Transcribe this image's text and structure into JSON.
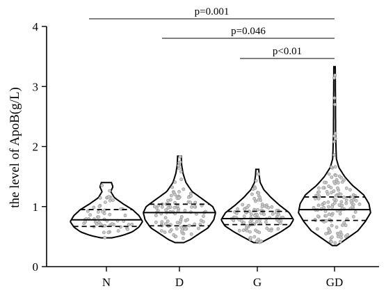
{
  "chart_data": {
    "type": "violin",
    "title": "",
    "xlabel": "",
    "ylabel": "the level of ApoB(g/L)",
    "ylim": [
      0,
      4
    ],
    "yticks": [
      0,
      1,
      2,
      3,
      4
    ],
    "categories": [
      "N",
      "D",
      "G",
      "GD"
    ],
    "groups": [
      {
        "name": "N",
        "min": 0.48,
        "q1": 0.67,
        "median": 0.78,
        "q3": 0.95,
        "max": 1.4,
        "profile": [
          [
            0.48,
            0.15
          ],
          [
            0.52,
            0.45
          ],
          [
            0.58,
            0.72
          ],
          [
            0.66,
            0.9
          ],
          [
            0.75,
            1.0
          ],
          [
            0.85,
            0.9
          ],
          [
            0.95,
            0.72
          ],
          [
            1.05,
            0.45
          ],
          [
            1.15,
            0.22
          ],
          [
            1.25,
            0.12
          ],
          [
            1.33,
            0.18
          ],
          [
            1.4,
            0.14
          ]
        ]
      },
      {
        "name": "D",
        "min": 0.4,
        "q1": 0.68,
        "median": 0.9,
        "q3": 1.04,
        "max": 1.84,
        "profile": [
          [
            0.4,
            0.12
          ],
          [
            0.45,
            0.3
          ],
          [
            0.55,
            0.55
          ],
          [
            0.65,
            0.8
          ],
          [
            0.78,
            0.95
          ],
          [
            0.9,
            1.0
          ],
          [
            1.0,
            0.92
          ],
          [
            1.12,
            0.65
          ],
          [
            1.25,
            0.35
          ],
          [
            1.4,
            0.18
          ],
          [
            1.55,
            0.1
          ],
          [
            1.7,
            0.06
          ],
          [
            1.84,
            0.05
          ]
        ]
      },
      {
        "name": "G",
        "min": 0.4,
        "q1": 0.7,
        "median": 0.8,
        "q3": 0.92,
        "max": 1.62,
        "profile": [
          [
            0.4,
            0.1
          ],
          [
            0.48,
            0.35
          ],
          [
            0.58,
            0.65
          ],
          [
            0.68,
            0.9
          ],
          [
            0.78,
            1.0
          ],
          [
            0.9,
            0.88
          ],
          [
            1.02,
            0.62
          ],
          [
            1.15,
            0.38
          ],
          [
            1.28,
            0.18
          ],
          [
            1.4,
            0.08
          ],
          [
            1.52,
            0.05
          ],
          [
            1.62,
            0.04
          ]
        ]
      },
      {
        "name": "GD",
        "min": 0.35,
        "q1": 0.77,
        "median": 0.95,
        "q3": 1.16,
        "max": 3.33,
        "profile": [
          [
            0.35,
            0.06
          ],
          [
            0.45,
            0.3
          ],
          [
            0.6,
            0.65
          ],
          [
            0.75,
            0.85
          ],
          [
            0.9,
            1.0
          ],
          [
            1.05,
            0.95
          ],
          [
            1.2,
            0.8
          ],
          [
            1.35,
            0.5
          ],
          [
            1.5,
            0.28
          ],
          [
            1.65,
            0.12
          ],
          [
            1.8,
            0.05
          ],
          [
            2.2,
            0.03
          ],
          [
            2.8,
            0.025
          ],
          [
            3.33,
            0.02
          ]
        ]
      }
    ],
    "comparisons": [
      {
        "from": "N",
        "to": "GD",
        "label": "p=0.001"
      },
      {
        "from": "D",
        "to": "GD",
        "label": "p=0.046"
      },
      {
        "from": "G",
        "to": "GD",
        "label": "p<0.01"
      }
    ],
    "grid": false,
    "legend": "none"
  }
}
